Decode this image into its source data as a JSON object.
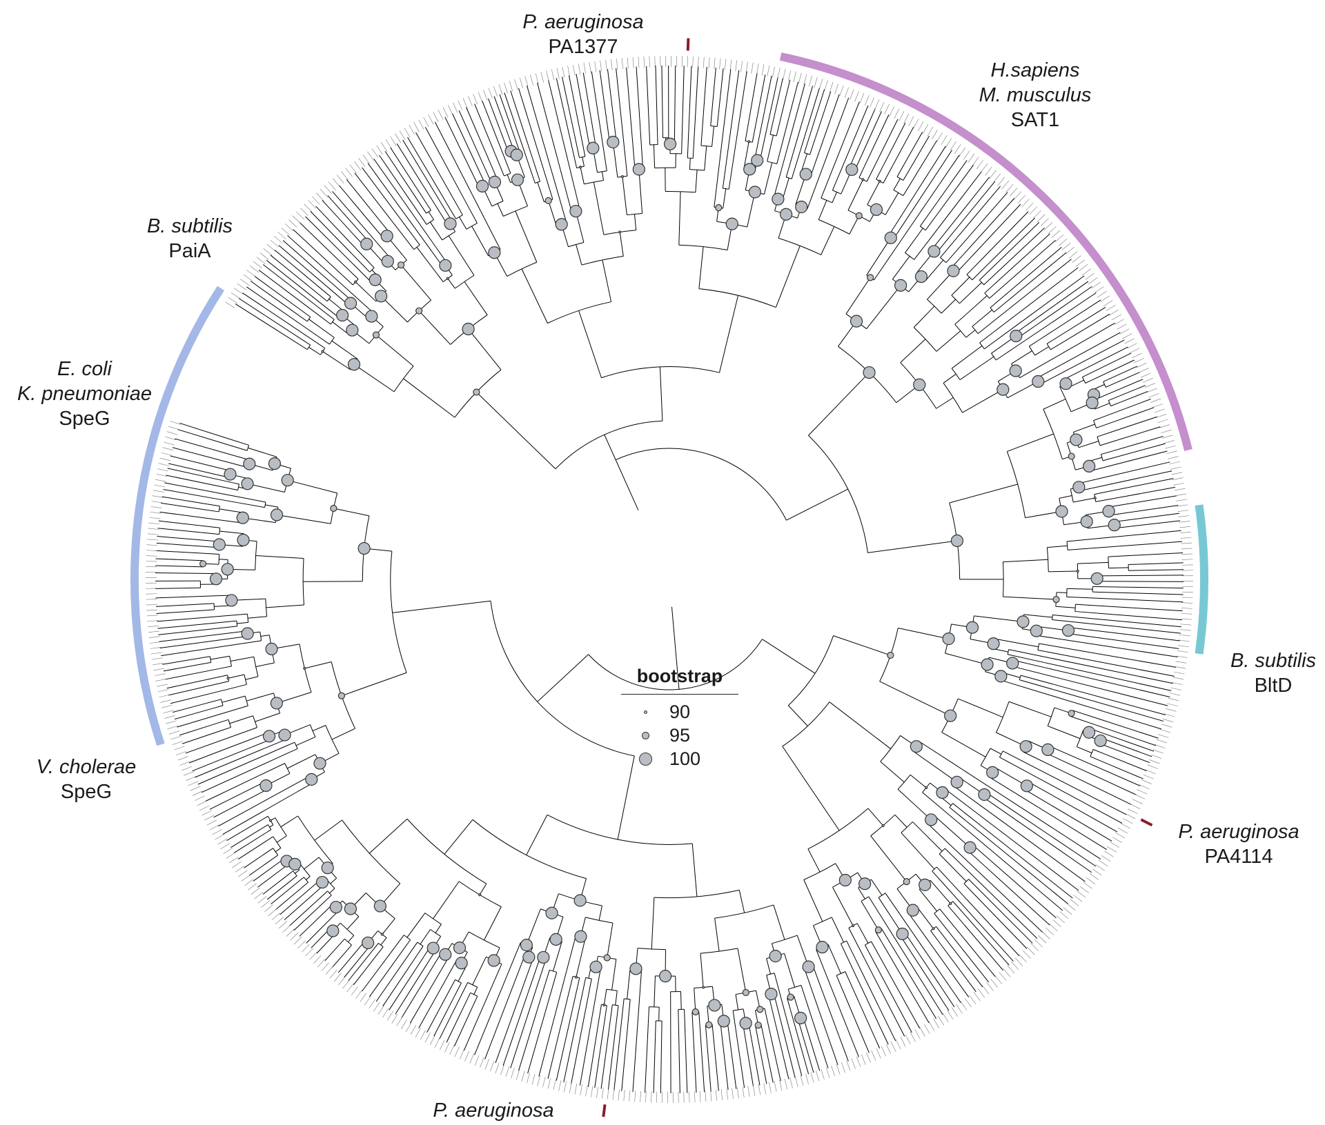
{
  "figure": {
    "type": "circular phylogenetic tree",
    "node_fill": "#b9bec4",
    "node_stroke": "#333333",
    "branch_color": "#000000"
  },
  "clades": [
    {
      "name": "SAT1 clade",
      "color": "#c48fcc"
    },
    {
      "name": "BltD clade",
      "color": "#78c8d4"
    },
    {
      "name": "SpeG clade",
      "color": "#a3b8e6"
    }
  ],
  "labels": {
    "pa1377": {
      "species": "P. aeruginosa",
      "gene": "PA1377"
    },
    "sat1": {
      "species1": "H.sapiens",
      "species2": "M. musculus",
      "gene": "SAT1"
    },
    "paia": {
      "species": "B. subtilis",
      "gene": "PaiA"
    },
    "speg_ecoli": {
      "species1": "E. coli",
      "species2": "K. pneumoniae",
      "gene": "SpeG"
    },
    "bltd": {
      "species": "B. subtilis",
      "gene": "BltD"
    },
    "pa4114": {
      "species": "P. aeruginosa",
      "gene": "PA4114"
    },
    "speg_vc": {
      "species": "V. cholerae",
      "gene": "SpeG"
    },
    "pa_bottom": {
      "species": "P. aeruginosa"
    }
  },
  "legend": {
    "title": "bootstrap",
    "entries": [
      {
        "label": "90",
        "value": 90
      },
      {
        "label": "95",
        "value": 95
      },
      {
        "label": "100",
        "value": 100
      }
    ]
  },
  "markers": {
    "reference_color": "#8a1c2c"
  }
}
